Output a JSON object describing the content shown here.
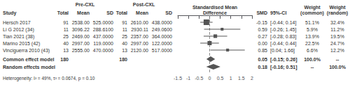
{
  "chart_data": {
    "type": "forest",
    "group_headers": [
      "Pre-CXL",
      "Post-CXL"
    ],
    "column_headers": [
      "Study",
      "Total",
      "Mean",
      "SD",
      "Total",
      "Mean",
      "SD",
      "SMD",
      "95%-CI",
      "Weight\n(common)",
      "Weight\n(random)"
    ],
    "x_label": "Standardised Mean\nDifference",
    "categories": [
      "Hersch 2017",
      "Li G 2012 (34)",
      "Tian 2021 (38)",
      "Marino 2015 (42)",
      "Vinciguerra 2010 (43)"
    ],
    "pre_total": [
      91,
      11,
      25,
      40,
      13
    ],
    "pre_mean": [
      "2538.00",
      "3096.22",
      "2469.00",
      "2997.00",
      "2555.00"
    ],
    "pre_sd": [
      "525.0000",
      "288.6100",
      "437.0000",
      "119.0000",
      "470.0000"
    ],
    "post_total": [
      91,
      11,
      25,
      40,
      13
    ],
    "post_mean": [
      "2610.00",
      "2930.11",
      "2357.00",
      "2997.00",
      "2120.00"
    ],
    "post_sd": [
      "438.0000",
      "249.0600",
      "364.0000",
      "122.0000",
      "517.0000"
    ],
    "values": [
      -0.15,
      0.59,
      0.27,
      0.0,
      0.85
    ],
    "value_labels": [
      "-0.15",
      "0.59",
      "0.27",
      "0.00",
      "0.85"
    ],
    "ci_low": [
      -0.44,
      -0.26,
      -0.28,
      -0.44,
      0.04
    ],
    "ci_high": [
      0.14,
      1.45,
      0.83,
      0.44,
      1.66
    ],
    "ci_labels": [
      "[-0.44; 0.14]",
      "[-0.26; 1.45]",
      "[-0.28; 0.83]",
      "[-0.44; 0.44]",
      "[0.04; 1.66]"
    ],
    "weight_common": [
      51.1,
      5.9,
      13.9,
      22.5,
      6.6
    ],
    "weight_common_labels": [
      "51.1%",
      "5.9%",
      "13.9%",
      "22.5%",
      "6.6%"
    ],
    "weight_random_labels": [
      "32.4%",
      "11.2%",
      "19.5%",
      "24.7%",
      "12.2%"
    ],
    "pooled": [
      {
        "name": "Common effect model",
        "total": 180,
        "value": 0.05,
        "value_label": "0.05",
        "ci_low": -0.15,
        "ci_high": 0.26,
        "ci_label": "[-0.15; 0.26]",
        "weight_common_label": "100.0%",
        "weight_random_label": "--"
      },
      {
        "name": "Random effects model",
        "value": 0.18,
        "value_label": "0.18",
        "ci_low": -0.16,
        "ci_high": 0.51,
        "ci_label": "[-0.16; 0.51]",
        "weight_common_label": "--",
        "weight_random_label": "100.0%"
      }
    ],
    "heterogeneity": "Heterogeneity: I² = 49%, τ² = 0.0674, p = 0.10",
    "null_line": 0,
    "xlim": [
      -1.5,
      2
    ],
    "xticks": [
      -1.5,
      -1,
      -0.5,
      0,
      0.5,
      1,
      1.5,
      2
    ],
    "grid": false,
    "color": "#555555"
  }
}
